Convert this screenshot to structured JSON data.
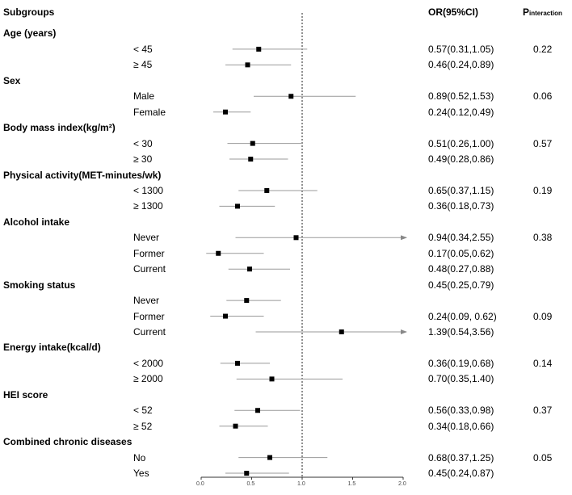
{
  "header": {
    "subgroups": "Subgroups",
    "or_ci": "OR(95%CI)",
    "p_main": "P",
    "p_sub": "interaction"
  },
  "chart_data": {
    "type": "forest",
    "xlim": [
      0.0,
      2.0
    ],
    "reference_line": 1.0,
    "x_ticks": [
      "0.0",
      "0.5",
      "1.0",
      "1.5",
      "2.0"
    ],
    "x_tick_values": [
      0.0,
      0.5,
      1.0,
      1.5,
      2.0
    ],
    "groups": [
      {
        "name": "Age (years)",
        "p_interaction": "0.22",
        "rows": [
          {
            "label": "< 45",
            "or": 0.57,
            "lo": 0.31,
            "hi": 1.05,
            "text": "0.57(0.31,1.05)"
          },
          {
            "label": "≥ 45",
            "or": 0.46,
            "lo": 0.24,
            "hi": 0.89,
            "text": "0.46(0.24,0.89)"
          }
        ]
      },
      {
        "name": "Sex",
        "p_interaction": "0.06",
        "rows": [
          {
            "label": "Male",
            "or": 0.89,
            "lo": 0.52,
            "hi": 1.53,
            "text": "0.89(0.52,1.53)"
          },
          {
            "label": "Female",
            "or": 0.24,
            "lo": 0.12,
            "hi": 0.49,
            "text": "0.24(0.12,0.49)"
          }
        ]
      },
      {
        "name": "Body mass index(kg/m²)",
        "p_interaction": "0.57",
        "rows": [
          {
            "label": "< 30",
            "or": 0.51,
            "lo": 0.26,
            "hi": 1.0,
            "text": "0.51(0.26,1.00)"
          },
          {
            "label": "≥ 30",
            "or": 0.49,
            "lo": 0.28,
            "hi": 0.86,
            "text": "0.49(0.28,0.86)"
          }
        ]
      },
      {
        "name": "Physical activity(MET-minutes/wk)",
        "p_interaction": "0.19",
        "rows": [
          {
            "label": "< 1300",
            "or": 0.65,
            "lo": 0.37,
            "hi": 1.15,
            "text": "0.65(0.37,1.15)"
          },
          {
            "label": "≥ 1300",
            "or": 0.36,
            "lo": 0.18,
            "hi": 0.73,
            "text": "0.36(0.18,0.73)"
          }
        ]
      },
      {
        "name": "Alcohol intake",
        "p_interaction": "0.38",
        "rows": [
          {
            "label": "Never",
            "or": 0.94,
            "lo": 0.34,
            "hi": 2.55,
            "text": "0.94(0.34,2.55)"
          },
          {
            "label": "Former",
            "or": 0.17,
            "lo": 0.05,
            "hi": 0.62,
            "text": "0.17(0.05,0.62)"
          },
          {
            "label": "Current",
            "or": 0.48,
            "lo": 0.27,
            "hi": 0.88,
            "text": "0.48(0.27,0.88)"
          }
        ]
      },
      {
        "name": "Smoking status",
        "p_interaction": "0.09",
        "header_text": "0.45(0.25,0.79)",
        "rows": [
          {
            "label": "Never",
            "or": 0.45,
            "lo": 0.25,
            "hi": 0.79,
            "text": ""
          },
          {
            "label": "Former",
            "or": 0.24,
            "lo": 0.09,
            "hi": 0.62,
            "text": "0.24(0.09, 0.62)"
          },
          {
            "label": "Current",
            "or": 1.39,
            "lo": 0.54,
            "hi": 3.56,
            "text": "1.39(0.54,3.56)"
          }
        ]
      },
      {
        "name": "Energy intake(kcal/d)",
        "p_interaction": "0.14",
        "rows": [
          {
            "label": "< 2000",
            "or": 0.36,
            "lo": 0.19,
            "hi": 0.68,
            "text": "0.36(0.19,0.68)"
          },
          {
            "label": "≥ 2000",
            "or": 0.7,
            "lo": 0.35,
            "hi": 1.4,
            "text": "0.70(0.35,1.40)"
          }
        ]
      },
      {
        "name": "HEI score",
        "p_interaction": "0.37",
        "rows": [
          {
            "label": "< 52",
            "or": 0.56,
            "lo": 0.33,
            "hi": 0.98,
            "text": "0.56(0.33,0.98)"
          },
          {
            "label": "≥ 52",
            "or": 0.34,
            "lo": 0.18,
            "hi": 0.66,
            "text": "0.34(0.18,0.66)"
          }
        ]
      },
      {
        "name": "Combined chronic diseases",
        "p_interaction": "0.05",
        "rows": [
          {
            "label": "No",
            "or": 0.68,
            "lo": 0.37,
            "hi": 1.25,
            "text": "0.68(0.37,1.25)"
          },
          {
            "label": "Yes",
            "or": 0.45,
            "lo": 0.24,
            "hi": 0.87,
            "text": "0.45(0.24,0.87)"
          }
        ]
      }
    ]
  }
}
